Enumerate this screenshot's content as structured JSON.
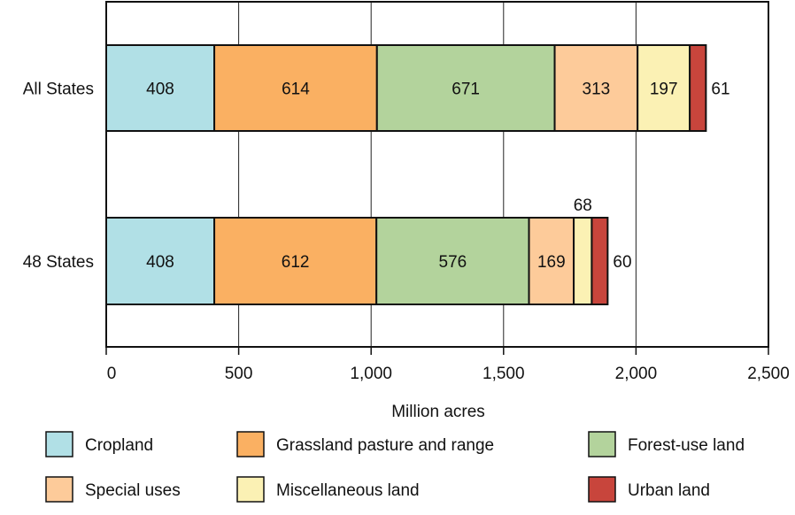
{
  "chart_data": {
    "type": "bar",
    "orientation": "horizontal",
    "stacked": true,
    "categories": [
      "All States",
      "48 States"
    ],
    "series": [
      {
        "name": "Cropland",
        "color": "#b1e0e6",
        "values": [
          408,
          408
        ]
      },
      {
        "name": "Grassland pasture and range",
        "color": "#fab062",
        "values": [
          614,
          612
        ]
      },
      {
        "name": "Forest-use land",
        "color": "#b3d39c",
        "values": [
          671,
          576
        ]
      },
      {
        "name": "Special uses",
        "color": "#fdcb9a",
        "values": [
          313,
          169
        ]
      },
      {
        "name": "Miscellaneous land",
        "color": "#fbf1b4",
        "values": [
          197,
          68
        ]
      },
      {
        "name": "Urban land",
        "color": "#c8453c",
        "values": [
          61,
          60
        ]
      }
    ],
    "data_labels": [
      [
        "408",
        "614",
        "671",
        "313",
        "197",
        "61"
      ],
      [
        "408",
        "612",
        "576",
        "169",
        "68",
        "60"
      ]
    ],
    "xlabel": "Million acres",
    "xlim": [
      0,
      2500
    ],
    "xticks": [
      0,
      500,
      1000,
      1500,
      2000,
      2500
    ],
    "xtick_labels": [
      "0",
      "500",
      "1,000",
      "1,500",
      "2,000",
      "2,500"
    ],
    "grid": "vertical",
    "legend_position": "bottom"
  }
}
